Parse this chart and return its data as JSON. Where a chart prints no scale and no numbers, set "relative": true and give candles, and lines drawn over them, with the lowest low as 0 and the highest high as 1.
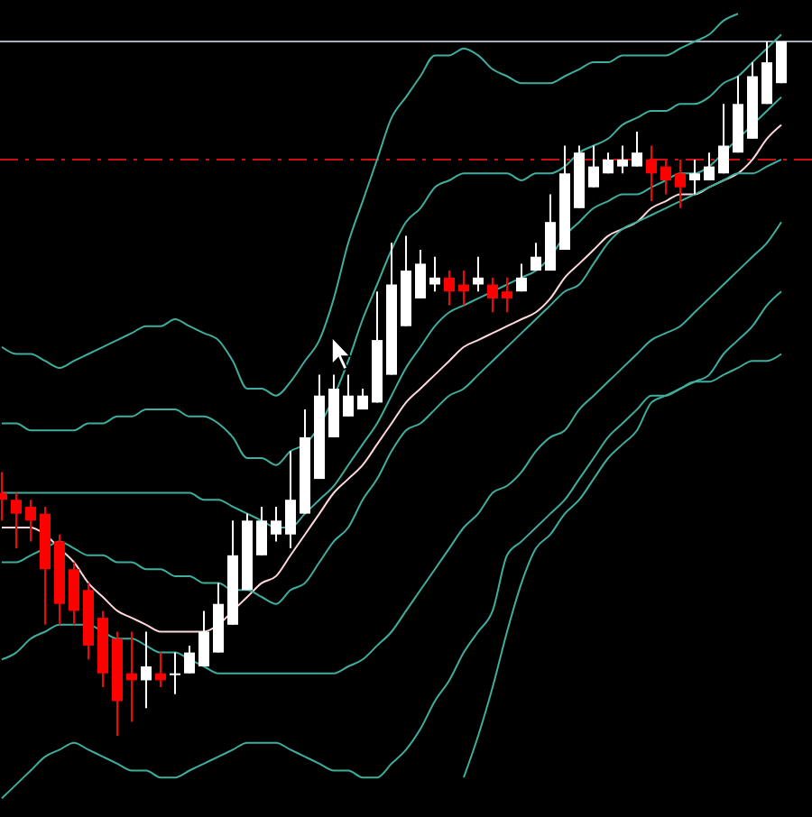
{
  "chart_data": {
    "type": "candlestick",
    "relative": true,
    "categories": [
      null,
      null,
      null,
      null,
      null,
      null,
      null,
      null,
      null,
      null,
      null,
      null,
      null,
      null,
      null,
      null,
      null,
      null,
      null,
      null,
      null,
      null,
      null,
      null,
      null,
      null,
      null,
      null,
      null,
      null,
      null,
      null,
      null,
      null,
      null,
      null,
      null,
      null,
      null,
      null,
      null,
      null,
      null,
      null,
      null,
      null,
      null,
      null,
      null,
      null,
      null,
      null,
      null,
      null,
      null
    ],
    "ohlc": [
      [
        0.35,
        0.38,
        0.31,
        0.34
      ],
      [
        0.34,
        0.35,
        0.27,
        0.32
      ],
      [
        0.33,
        0.34,
        0.28,
        0.31
      ],
      [
        0.32,
        0.33,
        0.16,
        0.24
      ],
      [
        0.28,
        0.29,
        0.16,
        0.19
      ],
      [
        0.24,
        0.25,
        0.16,
        0.18
      ],
      [
        0.21,
        0.22,
        0.11,
        0.13
      ],
      [
        0.17,
        0.18,
        0.07,
        0.09
      ],
      [
        0.14,
        0.15,
        0,
        0.05
      ],
      [
        0.09,
        0.15,
        0.02,
        0.08
      ],
      [
        0.08,
        0.15,
        0.04,
        0.1
      ],
      [
        0.09,
        0.12,
        0.07,
        0.08
      ],
      [
        0.09,
        0.12,
        0.06,
        0.09
      ],
      [
        0.09,
        0.13,
        0.09,
        0.12
      ],
      [
        0.1,
        0.18,
        0.1,
        0.15
      ],
      [
        0.12,
        0.22,
        0.12,
        0.19
      ],
      [
        0.16,
        0.31,
        0.16,
        0.26
      ],
      [
        0.21,
        0.32,
        0.21,
        0.31
      ],
      [
        0.26,
        0.33,
        0.26,
        0.31
      ],
      [
        0.29,
        0.33,
        0.28,
        0.31
      ],
      [
        0.29,
        0.41,
        0.27,
        0.34
      ],
      [
        0.32,
        0.47,
        0.32,
        0.43
      ],
      [
        0.37,
        0.52,
        0.37,
        0.49
      ],
      [
        0.43,
        0.52,
        0.43,
        0.5
      ],
      [
        0.46,
        0.52,
        0.46,
        0.49
      ],
      [
        0.47,
        0.5,
        0.47,
        0.49
      ],
      [
        0.48,
        0.64,
        0.48,
        0.57
      ],
      [
        0.52,
        0.71,
        0.52,
        0.65
      ],
      [
        0.59,
        0.72,
        0.59,
        0.67
      ],
      [
        0.63,
        0.7,
        0.63,
        0.68
      ],
      [
        0.65,
        0.69,
        0.64,
        0.66
      ],
      [
        0.66,
        0.67,
        0.62,
        0.64
      ],
      [
        0.65,
        0.67,
        0.62,
        0.64
      ],
      [
        0.65,
        0.69,
        0.64,
        0.66
      ],
      [
        0.65,
        0.66,
        0.61,
        0.63
      ],
      [
        0.64,
        0.66,
        0.61,
        0.63
      ],
      [
        0.64,
        0.68,
        0.64,
        0.66
      ],
      [
        0.67,
        0.71,
        0.67,
        0.69
      ],
      [
        0.67,
        0.78,
        0.67,
        0.74
      ],
      [
        0.7,
        0.85,
        0.7,
        0.81
      ],
      [
        0.76,
        0.85,
        0.76,
        0.84
      ],
      [
        0.79,
        0.85,
        0.79,
        0.82
      ],
      [
        0.81,
        0.84,
        0.81,
        0.83
      ],
      [
        0.82,
        0.85,
        0.81,
        0.83
      ],
      [
        0.82,
        0.87,
        0.82,
        0.84
      ],
      [
        0.83,
        0.85,
        0.77,
        0.81
      ],
      [
        0.82,
        0.83,
        0.78,
        0.8
      ],
      [
        0.81,
        0.83,
        0.76,
        0.79
      ],
      [
        0.8,
        0.83,
        0.78,
        0.81
      ],
      [
        0.8,
        0.84,
        0.8,
        0.82
      ],
      [
        0.81,
        0.91,
        0.81,
        0.85
      ],
      [
        0.84,
        0.95,
        0.84,
        0.91
      ],
      [
        0.86,
        0.97,
        0.86,
        0.95
      ],
      [
        0.91,
        1,
        0.91,
        0.97
      ],
      [
        0.94,
        1,
        0.94,
        1
      ]
    ],
    "colors": [
      "#ff0000",
      "#ff0000",
      "#ff0000",
      "#ff0000",
      "#ff0000",
      "#ff0000",
      "#ff0000",
      "#ff0000",
      "#ff0000",
      "#ff0000",
      "#ffffff",
      "#ff0000",
      "#ffffff",
      "#ffffff",
      "#ffffff",
      "#ffffff",
      "#ffffff",
      "#ffffff",
      "#ffffff",
      "#ffffff",
      "#ffffff",
      "#ffffff",
      "#ffffff",
      "#ffffff",
      "#ffffff",
      "#ffffff",
      "#ffffff",
      "#ffffff",
      "#ffffff",
      "#ffffff",
      "#ffffff",
      "#ff0000",
      "#ff0000",
      "#ffffff",
      "#ff0000",
      "#ff0000",
      "#ffffff",
      "#ffffff",
      "#ffffff",
      "#ffffff",
      "#ffffff",
      "#ffffff",
      "#ffffff",
      "#ffffff",
      "#ffffff",
      "#ff0000",
      "#ff0000",
      "#ff0000",
      "#ffffff",
      "#ffffff",
      "#ffffff",
      "#ffffff",
      "#ffffff",
      "#ffffff",
      "#ffffff"
    ],
    "series": [
      {
        "type": "line",
        "color": "#ffd8dc",
        "values": [
          0.3,
          0.3,
          0.3,
          0.29,
          0.27,
          0.25,
          0.22,
          0.2,
          0.18,
          0.17,
          0.16,
          0.15,
          0.15,
          0.15,
          0.15,
          0.16,
          0.18,
          0.2,
          0.22,
          0.23,
          0.26,
          0.29,
          0.32,
          0.35,
          0.37,
          0.39,
          0.42,
          0.45,
          0.48,
          0.5,
          0.52,
          0.54,
          0.56,
          0.57,
          0.58,
          0.59,
          0.6,
          0.61,
          0.63,
          0.66,
          0.68,
          0.7,
          0.72,
          0.73,
          0.74,
          0.76,
          0.77,
          0.78,
          0.78,
          0.79,
          0.8,
          0.81,
          0.83,
          0.86,
          0.88
        ]
      },
      {
        "type": "line",
        "color": "#3fae9e",
        "values": [
          0.35,
          0.35,
          0.35,
          0.35,
          0.35,
          0.35,
          0.35,
          0.35,
          0.35,
          0.35,
          0.35,
          0.35,
          0.35,
          0.35,
          0.34,
          0.34,
          0.33,
          0.32,
          0.31,
          0.3,
          0.3,
          0.32,
          0.34,
          0.36,
          0.39,
          0.42,
          0.45,
          0.49,
          0.53,
          0.56,
          0.59,
          0.61,
          0.62,
          0.63,
          0.64,
          0.65,
          0.66,
          0.67,
          0.69,
          0.72,
          0.74,
          0.76,
          0.77,
          0.78,
          0.78,
          0.79,
          0.8,
          0.81,
          0.81,
          0.82,
          0.84,
          0.86,
          0.88,
          0.9,
          0.92
        ]
      },
      {
        "type": "line",
        "color": "#3fae9e",
        "values": [
          0.45,
          0.45,
          0.44,
          0.44,
          0.44,
          0.44,
          0.45,
          0.45,
          0.46,
          0.46,
          0.47,
          0.47,
          0.47,
          0.46,
          0.46,
          0.45,
          0.43,
          0.4,
          0.4,
          0.39,
          0.41,
          0.42,
          null,
          null,
          0.54,
          0.6,
          0.65,
          0.7,
          0.74,
          0.76,
          0.79,
          0.8,
          0.81,
          0.81,
          0.81,
          0.81,
          0.8,
          0.81,
          0.81,
          0.82,
          0.84,
          0.85,
          0.86,
          0.88,
          0.89,
          0.9,
          0.9,
          0.91,
          0.91,
          0.92,
          0.94,
          0.95,
          0.97,
          0.99,
          1.01
        ]
      },
      {
        "type": "line",
        "color": "#3fae9e",
        "values": [
          0.56,
          0.55,
          0.55,
          0.54,
          0.53,
          0.54,
          0.55,
          0.56,
          0.57,
          0.58,
          0.59,
          0.59,
          0.6,
          0.59,
          0.58,
          0.57,
          0.54,
          0.5,
          0.5,
          0.49,
          0.51,
          0.54,
          0.57,
          0.63,
          0.71,
          0.77,
          0.83,
          0.89,
          0.92,
          0.95,
          0.98,
          0.98,
          0.99,
          0.98,
          0.96,
          0.95,
          0.94,
          0.94,
          0.94,
          0.95,
          0.96,
          0.97,
          0.97,
          0.98,
          0.98,
          0.98,
          0.98,
          0.99,
          1.0,
          1.01,
          1.03,
          1.04,
          null,
          null,
          null
        ]
      },
      {
        "type": "line",
        "color": "#3fae9e",
        "values": [
          0.25,
          0.25,
          0.26,
          0.27,
          0.28,
          0.27,
          0.26,
          0.26,
          0.25,
          0.25,
          0.24,
          0.24,
          0.23,
          0.23,
          0.22,
          0.22,
          0.21,
          0.21,
          0.2,
          0.19,
          0.21,
          0.22,
          0.25,
          0.28,
          0.3,
          0.34,
          0.37,
          0.41,
          0.44,
          0.45,
          0.47,
          0.49,
          0.5,
          0.52,
          0.54,
          0.56,
          0.58,
          0.6,
          0.62,
          0.64,
          0.65,
          0.68,
          0.71,
          0.73,
          0.74,
          0.75,
          0.76,
          0.77,
          0.78,
          0.79,
          0.8,
          0.81,
          0.81,
          0.82,
          0.83
        ]
      },
      {
        "type": "line",
        "color": "#3fae9e",
        "values": [
          0.11,
          0.12,
          0.14,
          0.15,
          0.16,
          0.16,
          0.16,
          0.15,
          0.14,
          0.14,
          0.13,
          0.12,
          0.12,
          0.11,
          0.1,
          0.09,
          0.09,
          0.09,
          0.09,
          0.09,
          0.09,
          0.09,
          0.09,
          0.09,
          0.1,
          0.11,
          0.13,
          0.15,
          0.18,
          0.21,
          0.24,
          0.27,
          0.3,
          0.32,
          0.35,
          0.36,
          0.38,
          0.41,
          0.43,
          0.44,
          0.47,
          0.49,
          0.51,
          0.53,
          0.55,
          0.57,
          0.58,
          0.59,
          0.61,
          0.63,
          0.65,
          0.67,
          0.69,
          0.71,
          0.74
        ]
      },
      {
        "type": "line",
        "color": "#3fae9e",
        "values": [
          -0.09,
          -0.07,
          -0.05,
          -0.03,
          -0.02,
          -0.01,
          -0.02,
          -0.03,
          -0.04,
          -0.05,
          -0.05,
          -0.06,
          -0.06,
          -0.05,
          -0.04,
          -0.03,
          -0.02,
          -0.01,
          -0.01,
          -0.01,
          -0.02,
          -0.03,
          -0.04,
          -0.05,
          -0.05,
          -0.06,
          -0.06,
          -0.04,
          -0.02,
          0.01,
          0.05,
          0.08,
          0.12,
          0.15,
          0.18,
          0.26,
          0.28,
          0.3,
          0.32,
          0.34,
          0.37,
          0.4,
          0.43,
          0.45,
          0.47,
          0.49,
          0.49,
          0.5,
          0.51,
          0.52,
          0.55,
          0.57,
          0.59,
          0.62,
          0.64
        ]
      },
      {
        "type": "line",
        "color": "#3fae9e",
        "values": [
          null,
          null,
          null,
          null,
          null,
          null,
          null,
          null,
          null,
          null,
          null,
          null,
          null,
          null,
          null,
          null,
          null,
          null,
          null,
          null,
          null,
          null,
          null,
          null,
          null,
          null,
          null,
          null,
          null,
          null,
          null,
          null,
          -0.06,
          0.0,
          0.07,
          0.15,
          0.22,
          0.27,
          0.29,
          0.32,
          0.34,
          0.37,
          0.4,
          0.42,
          0.44,
          0.48,
          0.49,
          0.5,
          0.51,
          0.51,
          0.52,
          0.53,
          0.54,
          0.54,
          0.55
        ]
      }
    ],
    "ref_lines": [
      {
        "axis": "y",
        "value": 1,
        "color": "#a8b0c0",
        "line_style": "solid"
      },
      {
        "axis": "y",
        "value": 0.83,
        "color": "#d01010",
        "line_style": "dashed"
      }
    ]
  }
}
